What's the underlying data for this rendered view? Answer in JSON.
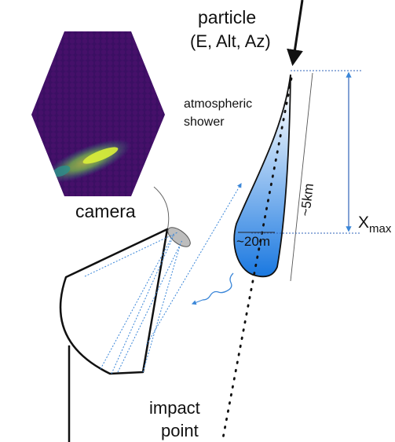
{
  "labels": {
    "particle_title": "particle",
    "particle_params": "(E, Alt, Az)",
    "shower_line1": "atmospheric",
    "shower_line2": "shower",
    "camera": "camera",
    "length": "~5km",
    "width": "~20m",
    "xmax_base": "X",
    "xmax_sub": "max",
    "impact_line1": "impact",
    "impact_line2": "point"
  },
  "colors": {
    "shower_top": "#ffffff",
    "shower_bottom": "#1a78e0",
    "camera_background": "#3b0f63",
    "camera_pixel": "#46106a",
    "image_core": "#d9f03a",
    "image_halo": "#2a8f8c",
    "light_ray": "#3a86d8",
    "xmax_marker": "#2f63b8",
    "outline": "#111111"
  },
  "icons": {
    "incoming_particle": "arrow-down-icon",
    "photon": "wavy-photon-icon"
  }
}
